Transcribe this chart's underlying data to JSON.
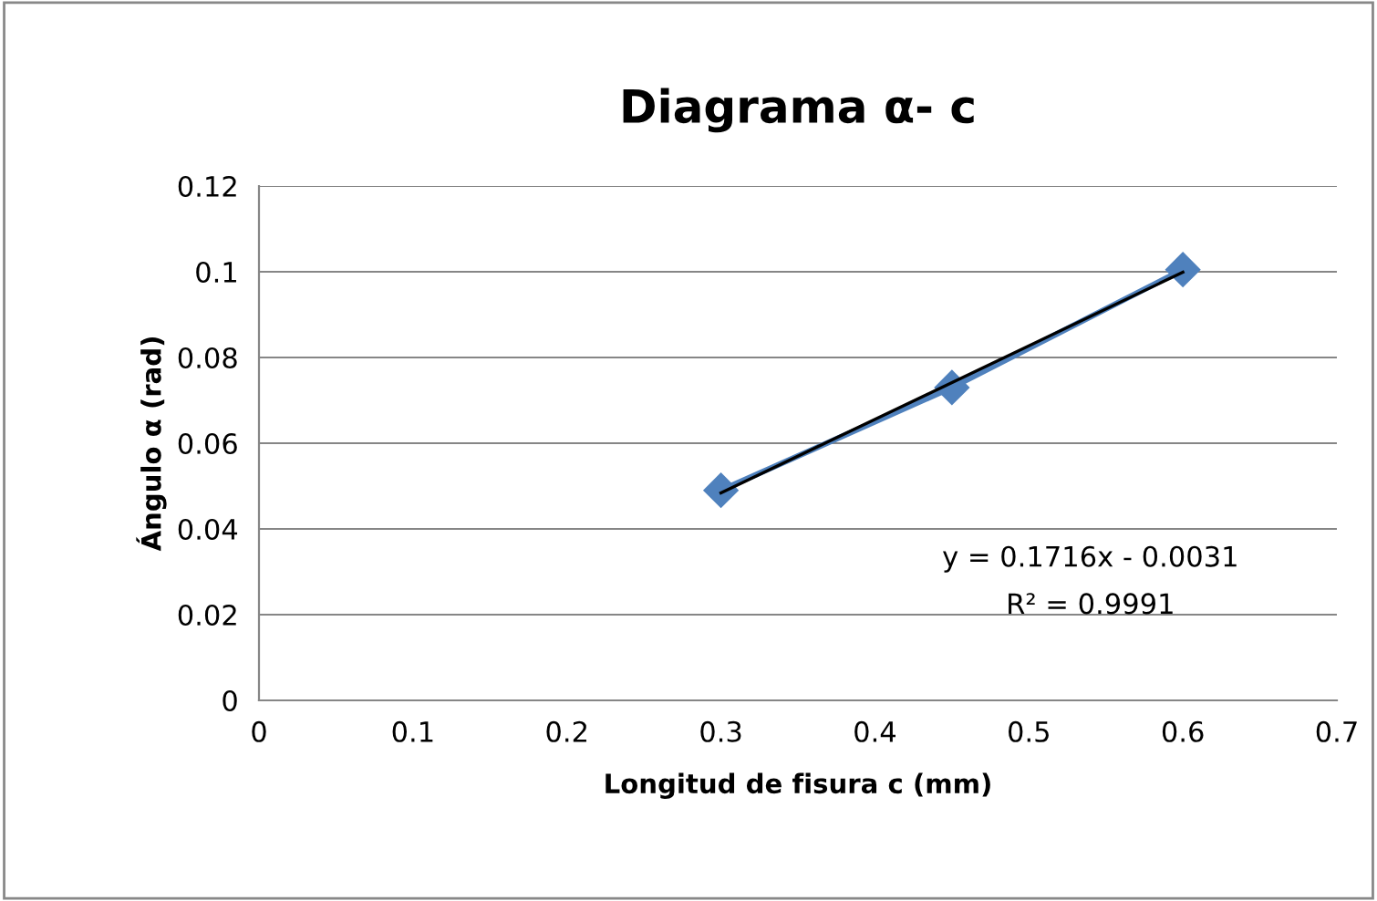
{
  "chart_data": {
    "type": "line",
    "title": "Diagrama α- c",
    "xlabel": "Longitud de fisura c (mm)",
    "ylabel": "Ángulo α (rad)",
    "series": [
      {
        "color": "#4f81bd",
        "x": [
          0.3,
          0.45,
          0.6
        ],
        "values": [
          0.049,
          0.073,
          0.1005
        ],
        "marker": "diamond",
        "line_style": "solid"
      },
      {
        "color": "#000000",
        "x": [
          0.3,
          0.6
        ],
        "values": [
          0.0484,
          0.0999
        ],
        "marker": "none",
        "line_style": "solid"
      }
    ],
    "annotations": [
      "y = 0.1716x - 0.0031",
      "R² = 0.9991"
    ],
    "xlim": [
      0,
      0.7
    ],
    "xticks": [
      0,
      0.1,
      0.2,
      0.3,
      0.4,
      0.5,
      0.6,
      0.7
    ],
    "ylim": [
      0,
      0.12
    ],
    "yticks": [
      0,
      0.02,
      0.04,
      0.06,
      0.08,
      0.1,
      0.12
    ],
    "grid": "y",
    "legend": false
  }
}
